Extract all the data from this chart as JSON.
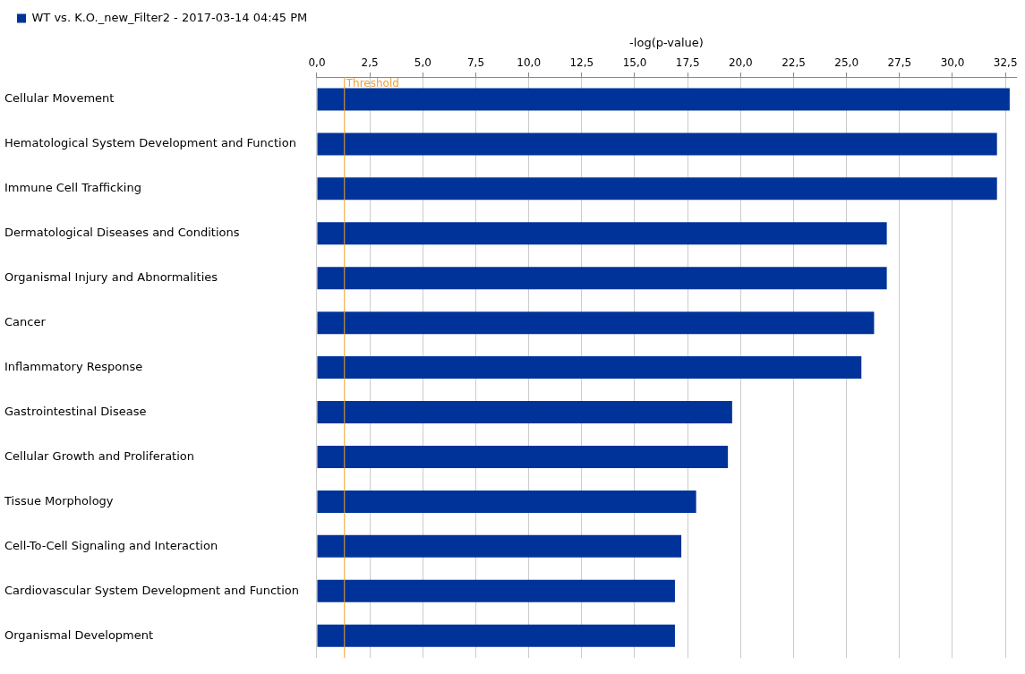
{
  "chart_data": {
    "type": "bar",
    "orientation": "horizontal",
    "xlabel": "-log(p-value)",
    "categories": [
      "Cellular Movement",
      "Hematological System Development and Function",
      "Immune Cell Trafficking",
      "Dermatological Diseases and Conditions",
      "Organismal Injury and Abnormalities",
      "Cancer",
      "Inflammatory Response",
      "Gastrointestinal Disease",
      "Cellular Growth and Proliferation",
      "Tissue Morphology",
      "Cell-To-Cell Signaling and Interaction",
      "Cardiovascular System Development and Function",
      "Organismal Development"
    ],
    "series": [
      {
        "name": "WT vs. K.O._new_Filter2 - 2017-03-14 04:45 PM",
        "color": "#003399",
        "values": [
          32.7,
          32.1,
          32.1,
          26.9,
          26.9,
          26.3,
          25.7,
          19.6,
          19.4,
          17.9,
          17.2,
          16.9,
          16.9
        ]
      }
    ],
    "xlim": [
      0,
      33
    ],
    "xticks": [
      {
        "value": 0,
        "label": "0,0"
      },
      {
        "value": 2.5,
        "label": "2,5"
      },
      {
        "value": 5,
        "label": "5,0"
      },
      {
        "value": 7.5,
        "label": "7,5"
      },
      {
        "value": 10,
        "label": "10,0"
      },
      {
        "value": 12.5,
        "label": "12,5"
      },
      {
        "value": 15,
        "label": "15,0"
      },
      {
        "value": 17.5,
        "label": "17,5"
      },
      {
        "value": 20,
        "label": "20,0"
      },
      {
        "value": 22.5,
        "label": "22,5"
      },
      {
        "value": 25,
        "label": "25,0"
      },
      {
        "value": 27.5,
        "label": "27,5"
      },
      {
        "value": 30,
        "label": "30,0"
      },
      {
        "value": 32.5,
        "label": "32,5"
      }
    ],
    "ref_lines": [
      {
        "axis": "x",
        "value": 1.3,
        "label": "Threshold",
        "color": "#f0a030"
      }
    ],
    "grid": "x",
    "legend": "top left"
  }
}
